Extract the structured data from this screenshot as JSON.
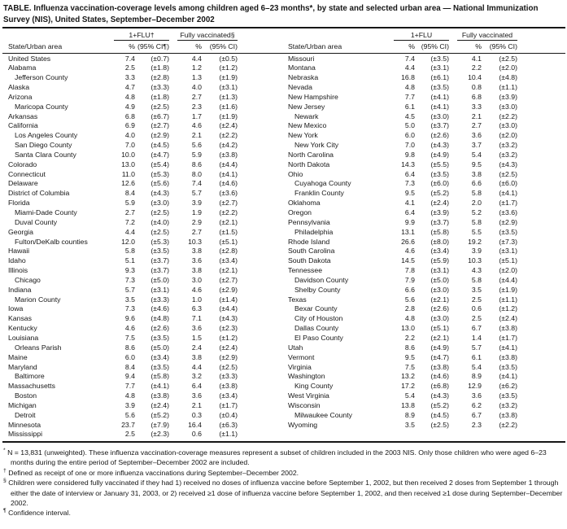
{
  "title": "TABLE. Influenza vaccination-coverage levels among children aged 6–23 months*, by state and selected urban area — National Immunization Survey (NIS), United States, September–December 2002",
  "header": {
    "left": {
      "state_col": "State/Urban area",
      "group1": "1+FLU†",
      "group2": "Fully vaccinated§",
      "pct1": "%",
      "ci1": "(95% CI¶)",
      "pct2": "%",
      "ci2": "(95% CI)"
    },
    "right": {
      "state_col": "State/Urban area",
      "group1": "1+FLU",
      "group2": "Fully vaccinated",
      "pct1": "%",
      "ci1": "(95% CI)",
      "pct2": "%",
      "ci2": "(95% CI)"
    }
  },
  "left_rows": [
    {
      "name": "United States",
      "indent": false,
      "flu_pct": "7.4",
      "flu_ci": "(±0.7)",
      "full_pct": "4.4",
      "full_ci": "(±0.5)"
    },
    {
      "name": "Alabama",
      "indent": false,
      "flu_pct": "2.5",
      "flu_ci": "(±1.8)",
      "full_pct": "1.2",
      "full_ci": "(±1.2)"
    },
    {
      "name": "Jefferson County",
      "indent": true,
      "flu_pct": "3.3",
      "flu_ci": "(±2.8)",
      "full_pct": "1.3",
      "full_ci": "(±1.9)"
    },
    {
      "name": "Alaska",
      "indent": false,
      "flu_pct": "4.7",
      "flu_ci": "(±3.3)",
      "full_pct": "4.0",
      "full_ci": "(±3.1)"
    },
    {
      "name": "Arizona",
      "indent": false,
      "flu_pct": "4.8",
      "flu_ci": "(±1.8)",
      "full_pct": "2.7",
      "full_ci": "(±1.3)"
    },
    {
      "name": "Maricopa County",
      "indent": true,
      "flu_pct": "4.9",
      "flu_ci": "(±2.5)",
      "full_pct": "2.3",
      "full_ci": "(±1.6)"
    },
    {
      "name": "Arkansas",
      "indent": false,
      "flu_pct": "6.8",
      "flu_ci": "(±6.7)",
      "full_pct": "1.7",
      "full_ci": "(±1.9)"
    },
    {
      "name": "California",
      "indent": false,
      "flu_pct": "6.9",
      "flu_ci": "(±2.7)",
      "full_pct": "4.6",
      "full_ci": "(±2.4)"
    },
    {
      "name": "Los Angeles County",
      "indent": true,
      "flu_pct": "4.0",
      "flu_ci": "(±2.9)",
      "full_pct": "2.1",
      "full_ci": "(±2.2)"
    },
    {
      "name": "San Diego County",
      "indent": true,
      "flu_pct": "7.0",
      "flu_ci": "(±4.5)",
      "full_pct": "5.6",
      "full_ci": "(±4.2)"
    },
    {
      "name": "Santa Clara County",
      "indent": true,
      "flu_pct": "10.0",
      "flu_ci": "(±4.7)",
      "full_pct": "5.9",
      "full_ci": "(±3.8)"
    },
    {
      "name": "Colorado",
      "indent": false,
      "flu_pct": "13.0",
      "flu_ci": "(±5.4)",
      "full_pct": "8.6",
      "full_ci": "(±4.4)"
    },
    {
      "name": "Connecticut",
      "indent": false,
      "flu_pct": "11.0",
      "flu_ci": "(±5.3)",
      "full_pct": "8.0",
      "full_ci": "(±4.1)"
    },
    {
      "name": "Delaware",
      "indent": false,
      "flu_pct": "12.6",
      "flu_ci": "(±5.6)",
      "full_pct": "7.4",
      "full_ci": "(±4.6)"
    },
    {
      "name": "District of Columbia",
      "indent": false,
      "flu_pct": "8.4",
      "flu_ci": "(±4.3)",
      "full_pct": "5.7",
      "full_ci": "(±3.6)"
    },
    {
      "name": "Florida",
      "indent": false,
      "flu_pct": "5.9",
      "flu_ci": "(±3.0)",
      "full_pct": "3.9",
      "full_ci": "(±2.7)"
    },
    {
      "name": "Miami-Dade County",
      "indent": true,
      "flu_pct": "2.7",
      "flu_ci": "(±2.5)",
      "full_pct": "1.9",
      "full_ci": "(±2.2)"
    },
    {
      "name": "Duval County",
      "indent": true,
      "flu_pct": "7.2",
      "flu_ci": "(±4.0)",
      "full_pct": "2.9",
      "full_ci": "(±2.1)"
    },
    {
      "name": "Georgia",
      "indent": false,
      "flu_pct": "4.4",
      "flu_ci": "(±2.5)",
      "full_pct": "2.7",
      "full_ci": "(±1.5)"
    },
    {
      "name": "Fulton/DeKalb counties",
      "indent": true,
      "flu_pct": "12.0",
      "flu_ci": "(±5.3)",
      "full_pct": "10.3",
      "full_ci": "(±5.1)"
    },
    {
      "name": "Hawaii",
      "indent": false,
      "flu_pct": "5.8",
      "flu_ci": "(±3.5)",
      "full_pct": "3.8",
      "full_ci": "(±2.8)"
    },
    {
      "name": "Idaho",
      "indent": false,
      "flu_pct": "5.1",
      "flu_ci": "(±3.7)",
      "full_pct": "3.6",
      "full_ci": "(±3.4)"
    },
    {
      "name": "Illinois",
      "indent": false,
      "flu_pct": "9.3",
      "flu_ci": "(±3.7)",
      "full_pct": "3.8",
      "full_ci": "(±2.1)"
    },
    {
      "name": "Chicago",
      "indent": true,
      "flu_pct": "7.3",
      "flu_ci": "(±5.0)",
      "full_pct": "3.0",
      "full_ci": "(±2.7)"
    },
    {
      "name": "Indiana",
      "indent": false,
      "flu_pct": "5.7",
      "flu_ci": "(±3.1)",
      "full_pct": "4.6",
      "full_ci": "(±2.9)"
    },
    {
      "name": "Marion County",
      "indent": true,
      "flu_pct": "3.5",
      "flu_ci": "(±3.3)",
      "full_pct": "1.0",
      "full_ci": "(±1.4)"
    },
    {
      "name": "Iowa",
      "indent": false,
      "flu_pct": "7.3",
      "flu_ci": "(±4.6)",
      "full_pct": "6.3",
      "full_ci": "(±4.4)"
    },
    {
      "name": "Kansas",
      "indent": false,
      "flu_pct": "9.6",
      "flu_ci": "(±4.8)",
      "full_pct": "7.1",
      "full_ci": "(±4.3)"
    },
    {
      "name": "Kentucky",
      "indent": false,
      "flu_pct": "4.6",
      "flu_ci": "(±2.6)",
      "full_pct": "3.6",
      "full_ci": "(±2.3)"
    },
    {
      "name": "Louisiana",
      "indent": false,
      "flu_pct": "7.5",
      "flu_ci": "(±3.5)",
      "full_pct": "1.5",
      "full_ci": "(±1.2)"
    },
    {
      "name": "Orleans Parish",
      "indent": true,
      "flu_pct": "8.6",
      "flu_ci": "(±5.0)",
      "full_pct": "2.4",
      "full_ci": "(±2.4)"
    },
    {
      "name": "Maine",
      "indent": false,
      "flu_pct": "6.0",
      "flu_ci": "(±3.4)",
      "full_pct": "3.8",
      "full_ci": "(±2.9)"
    },
    {
      "name": "Maryland",
      "indent": false,
      "flu_pct": "8.4",
      "flu_ci": "(±3.5)",
      "full_pct": "4.4",
      "full_ci": "(±2.5)"
    },
    {
      "name": "Baltimore",
      "indent": true,
      "flu_pct": "9.4",
      "flu_ci": "(±5.8)",
      "full_pct": "3.2",
      "full_ci": "(±3.3)"
    },
    {
      "name": "Massachusetts",
      "indent": false,
      "flu_pct": "7.7",
      "flu_ci": "(±4.1)",
      "full_pct": "6.4",
      "full_ci": "(±3.8)"
    },
    {
      "name": "Boston",
      "indent": true,
      "flu_pct": "4.8",
      "flu_ci": "(±3.8)",
      "full_pct": "3.6",
      "full_ci": "(±3.4)"
    },
    {
      "name": "Michigan",
      "indent": false,
      "flu_pct": "3.9",
      "flu_ci": "(±2.4)",
      "full_pct": "2.1",
      "full_ci": "(±1.7)"
    },
    {
      "name": "Detroit",
      "indent": true,
      "flu_pct": "5.6",
      "flu_ci": "(±5.2)",
      "full_pct": "0.3",
      "full_ci": "(±0.4)"
    },
    {
      "name": "Minnesota",
      "indent": false,
      "flu_pct": "23.7",
      "flu_ci": "(±7.9)",
      "full_pct": "16.4",
      "full_ci": "(±6.3)"
    },
    {
      "name": "Mississippi",
      "indent": false,
      "flu_pct": "2.5",
      "flu_ci": "(±2.3)",
      "full_pct": "0.6",
      "full_ci": "(±1.1)"
    }
  ],
  "right_rows": [
    {
      "name": "Missouri",
      "indent": false,
      "flu_pct": "7.4",
      "flu_ci": "(±3.5)",
      "full_pct": "4.1",
      "full_ci": "(±2.5)"
    },
    {
      "name": "Montana",
      "indent": false,
      "flu_pct": "4.4",
      "flu_ci": "(±3.1)",
      "full_pct": "2.2",
      "full_ci": "(±2.0)"
    },
    {
      "name": "Nebraska",
      "indent": false,
      "flu_pct": "16.8",
      "flu_ci": "(±6.1)",
      "full_pct": "10.4",
      "full_ci": "(±4.8)"
    },
    {
      "name": "Nevada",
      "indent": false,
      "flu_pct": "4.8",
      "flu_ci": "(±3.5)",
      "full_pct": "0.8",
      "full_ci": "(±1.1)"
    },
    {
      "name": "New Hampshire",
      "indent": false,
      "flu_pct": "7.7",
      "flu_ci": "(±4.1)",
      "full_pct": "6.8",
      "full_ci": "(±3.9)"
    },
    {
      "name": "New Jersey",
      "indent": false,
      "flu_pct": "6.1",
      "flu_ci": "(±4.1)",
      "full_pct": "3.3",
      "full_ci": "(±3.0)"
    },
    {
      "name": "Newark",
      "indent": true,
      "flu_pct": "4.5",
      "flu_ci": "(±3.0)",
      "full_pct": "2.1",
      "full_ci": "(±2.2)"
    },
    {
      "name": "New Mexico",
      "indent": false,
      "flu_pct": "5.0",
      "flu_ci": "(±3.7)",
      "full_pct": "2.7",
      "full_ci": "(±3.0)"
    },
    {
      "name": "New York",
      "indent": false,
      "flu_pct": "6.0",
      "flu_ci": "(±2.6)",
      "full_pct": "3.6",
      "full_ci": "(±2.0)"
    },
    {
      "name": "New York City",
      "indent": true,
      "flu_pct": "7.0",
      "flu_ci": "(±4.3)",
      "full_pct": "3.7",
      "full_ci": "(±3.2)"
    },
    {
      "name": "North Carolina",
      "indent": false,
      "flu_pct": "9.8",
      "flu_ci": "(±4.9)",
      "full_pct": "5.4",
      "full_ci": "(±3.2)"
    },
    {
      "name": "North Dakota",
      "indent": false,
      "flu_pct": "14.3",
      "flu_ci": "(±5.5)",
      "full_pct": "9.5",
      "full_ci": "(±4.3)"
    },
    {
      "name": "Ohio",
      "indent": false,
      "flu_pct": "6.4",
      "flu_ci": "(±3.5)",
      "full_pct": "3.8",
      "full_ci": "(±2.5)"
    },
    {
      "name": "Cuyahoga County",
      "indent": true,
      "flu_pct": "7.3",
      "flu_ci": "(±6.0)",
      "full_pct": "6.6",
      "full_ci": "(±6.0)"
    },
    {
      "name": "Franklin County",
      "indent": true,
      "flu_pct": "9.5",
      "flu_ci": "(±5.2)",
      "full_pct": "5.8",
      "full_ci": "(±4.1)"
    },
    {
      "name": "Oklahoma",
      "indent": false,
      "flu_pct": "4.1",
      "flu_ci": "(±2.4)",
      "full_pct": "2.0",
      "full_ci": "(±1.7)"
    },
    {
      "name": "Oregon",
      "indent": false,
      "flu_pct": "6.4",
      "flu_ci": "(±3.9)",
      "full_pct": "5.2",
      "full_ci": "(±3.6)"
    },
    {
      "name": "Pennsylvania",
      "indent": false,
      "flu_pct": "9.9",
      "flu_ci": "(±3.7)",
      "full_pct": "5.8",
      "full_ci": "(±2.9)"
    },
    {
      "name": "Philadelphia",
      "indent": true,
      "flu_pct": "13.1",
      "flu_ci": "(±5.8)",
      "full_pct": "5.5",
      "full_ci": "(±3.5)"
    },
    {
      "name": "Rhode Island",
      "indent": false,
      "flu_pct": "26.6",
      "flu_ci": "(±8.0)",
      "full_pct": "19.2",
      "full_ci": "(±7.3)"
    },
    {
      "name": "South Carolina",
      "indent": false,
      "flu_pct": "4.6",
      "flu_ci": "(±3.4)",
      "full_pct": "3.9",
      "full_ci": "(±3.1)"
    },
    {
      "name": "South Dakota",
      "indent": false,
      "flu_pct": "14.5",
      "flu_ci": "(±5.9)",
      "full_pct": "10.3",
      "full_ci": "(±5.1)"
    },
    {
      "name": "Tennessee",
      "indent": false,
      "flu_pct": "7.8",
      "flu_ci": "(±3.1)",
      "full_pct": "4.3",
      "full_ci": "(±2.0)"
    },
    {
      "name": "Davidson County",
      "indent": true,
      "flu_pct": "7.9",
      "flu_ci": "(±5.0)",
      "full_pct": "5.8",
      "full_ci": "(±4.4)"
    },
    {
      "name": "Shelby County",
      "indent": true,
      "flu_pct": "6.6",
      "flu_ci": "(±3.0)",
      "full_pct": "3.5",
      "full_ci": "(±1.9)"
    },
    {
      "name": "Texas",
      "indent": false,
      "flu_pct": "5.6",
      "flu_ci": "(±2.1)",
      "full_pct": "2.5",
      "full_ci": "(±1.1)"
    },
    {
      "name": "Bexar County",
      "indent": true,
      "flu_pct": "2.8",
      "flu_ci": "(±2.6)",
      "full_pct": "0.6",
      "full_ci": "(±1.2)"
    },
    {
      "name": "City of Houston",
      "indent": true,
      "flu_pct": "4.8",
      "flu_ci": "(±3.0)",
      "full_pct": "2.5",
      "full_ci": "(±2.4)"
    },
    {
      "name": "Dallas County",
      "indent": true,
      "flu_pct": "13.0",
      "flu_ci": "(±5.1)",
      "full_pct": "6.7",
      "full_ci": "(±3.8)"
    },
    {
      "name": "El Paso County",
      "indent": true,
      "flu_pct": "2.2",
      "flu_ci": "(±2.1)",
      "full_pct": "1.4",
      "full_ci": "(±1.7)"
    },
    {
      "name": "Utah",
      "indent": false,
      "flu_pct": "8.6",
      "flu_ci": "(±4.9)",
      "full_pct": "5.7",
      "full_ci": "(±4.1)"
    },
    {
      "name": "Vermont",
      "indent": false,
      "flu_pct": "9.5",
      "flu_ci": "(±4.7)",
      "full_pct": "6.1",
      "full_ci": "(±3.8)"
    },
    {
      "name": "Virginia",
      "indent": false,
      "flu_pct": "7.5",
      "flu_ci": "(±3.8)",
      "full_pct": "5.4",
      "full_ci": "(±3.5)"
    },
    {
      "name": "Washington",
      "indent": false,
      "flu_pct": "13.2",
      "flu_ci": "(±4.6)",
      "full_pct": "8.9",
      "full_ci": "(±4.1)"
    },
    {
      "name": "King County",
      "indent": true,
      "flu_pct": "17.2",
      "flu_ci": "(±6.8)",
      "full_pct": "12.9",
      "full_ci": "(±6.2)"
    },
    {
      "name": "West Virginia",
      "indent": false,
      "flu_pct": "5.4",
      "flu_ci": "(±4.3)",
      "full_pct": "3.6",
      "full_ci": "(±3.5)"
    },
    {
      "name": "Wisconsin",
      "indent": false,
      "flu_pct": "13.8",
      "flu_ci": "(±5.2)",
      "full_pct": "6.2",
      "full_ci": "(±3.2)"
    },
    {
      "name": "Milwaukee County",
      "indent": true,
      "flu_pct": "8.9",
      "flu_ci": "(±4.5)",
      "full_pct": "6.7",
      "full_ci": "(±3.8)"
    },
    {
      "name": "Wyoming",
      "indent": false,
      "flu_pct": "3.5",
      "flu_ci": "(±2.5)",
      "full_pct": "2.3",
      "full_ci": "(±2.2)"
    }
  ],
  "footnotes": [
    {
      "marker": "*",
      "text": "N = 13,831 (unweighted). These influenza vaccination-coverage measures represent a subset of children included in the 2003 NIS. Only those children who were aged 6–23 months during the entire period of September–December 2002 are included."
    },
    {
      "marker": "†",
      "text": "Defined as receipt of one or more influenza vaccinations during September–December 2002."
    },
    {
      "marker": "§",
      "text": "Children were considered fully vaccinated if they had 1) received no doses of influenza vaccine before September 1, 2002, but then received 2 doses from September 1 through either the date of interview or January 31, 2003, or 2) received ≥1 dose of influenza vaccine before September 1, 2002, and then received ≥1 dose during September–December 2002."
    },
    {
      "marker": "¶",
      "text": "Confidence interval."
    }
  ]
}
